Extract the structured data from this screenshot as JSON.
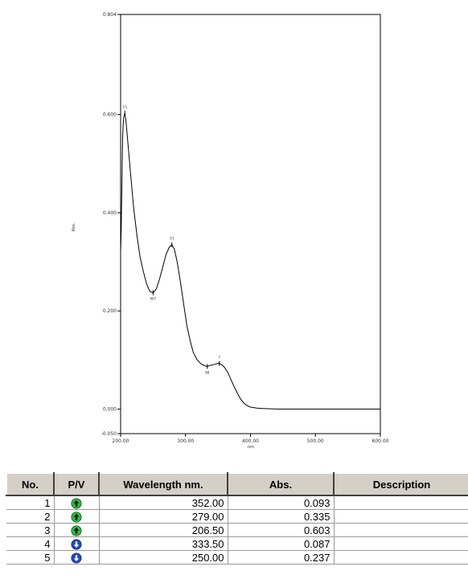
{
  "chart_data": {
    "type": "line",
    "xlabel": "nm",
    "ylabel": "Abs.",
    "xlim": [
      200.0,
      600.0
    ],
    "ylim": [
      -0.05,
      0.804
    ],
    "x_ticks": [
      "200.00",
      "300.00",
      "400.00",
      "500.00",
      "600.00"
    ],
    "y_ticks": [
      "0.804",
      "0.600",
      "0.400",
      "0.200",
      "0.000",
      "-0.050"
    ],
    "y_tick_values": [
      0.804,
      0.6,
      0.4,
      0.2,
      0.0,
      -0.05
    ],
    "grid": false,
    "series": [
      {
        "x": [
          200,
          201,
          202,
          203,
          204,
          205,
          206.5,
          208,
          212,
          216,
          220,
          225,
          230,
          235,
          240,
          245,
          250,
          255,
          260,
          265,
          270,
          275,
          279,
          283,
          287,
          292,
          297,
          302,
          307,
          312,
          318,
          324,
          330,
          333.5,
          338,
          344,
          350,
          352,
          356,
          360,
          365,
          370,
          375,
          380,
          385,
          390,
          395,
          400,
          410,
          420,
          440,
          460,
          480,
          500,
          550,
          600
        ],
        "y": [
          0.32,
          0.37,
          0.46,
          0.55,
          0.58,
          0.595,
          0.603,
          0.59,
          0.53,
          0.47,
          0.41,
          0.355,
          0.31,
          0.28,
          0.255,
          0.24,
          0.237,
          0.245,
          0.265,
          0.29,
          0.315,
          0.33,
          0.335,
          0.325,
          0.3,
          0.26,
          0.215,
          0.17,
          0.14,
          0.115,
          0.1,
          0.092,
          0.088,
          0.087,
          0.089,
          0.091,
          0.093,
          0.093,
          0.09,
          0.085,
          0.075,
          0.06,
          0.045,
          0.032,
          0.02,
          0.012,
          0.007,
          0.004,
          0.002,
          0.001,
          0.0,
          0.0,
          0.0,
          0.0,
          0.0,
          0.0
        ]
      }
    ],
    "peak_labels": [
      {
        "x": 206.5,
        "y": 0.603,
        "label": "7/1",
        "kind": "peak"
      },
      {
        "x": 279.0,
        "y": 0.335,
        "label": "7/1",
        "kind": "peak"
      },
      {
        "x": 352.0,
        "y": 0.093,
        "label": "7",
        "kind": "peak"
      },
      {
        "x": 250.0,
        "y": 0.237,
        "label": "967",
        "kind": "valley"
      },
      {
        "x": 333.5,
        "y": 0.087,
        "label": "88",
        "kind": "valley"
      }
    ]
  },
  "table": {
    "headers": [
      "No.",
      "P/V",
      "Wavelength nm.",
      "Abs.",
      "Description"
    ],
    "rows": [
      {
        "no": "1",
        "pv": "peak",
        "wavelength": "352.00",
        "abs": "0.093",
        "description": ""
      },
      {
        "no": "2",
        "pv": "peak",
        "wavelength": "279.00",
        "abs": "0.335",
        "description": ""
      },
      {
        "no": "3",
        "pv": "peak",
        "wavelength": "206.50",
        "abs": "0.603",
        "description": ""
      },
      {
        "no": "4",
        "pv": "valley",
        "wavelength": "333.50",
        "abs": "0.087",
        "description": ""
      },
      {
        "no": "5",
        "pv": "valley",
        "wavelength": "250.00",
        "abs": "0.237",
        "description": ""
      }
    ],
    "colors": {
      "peak": "#22c03a",
      "valley": "#1f46d8"
    },
    "icons": {
      "peak": "up-arrow-icon",
      "valley": "down-arrow-icon"
    }
  }
}
